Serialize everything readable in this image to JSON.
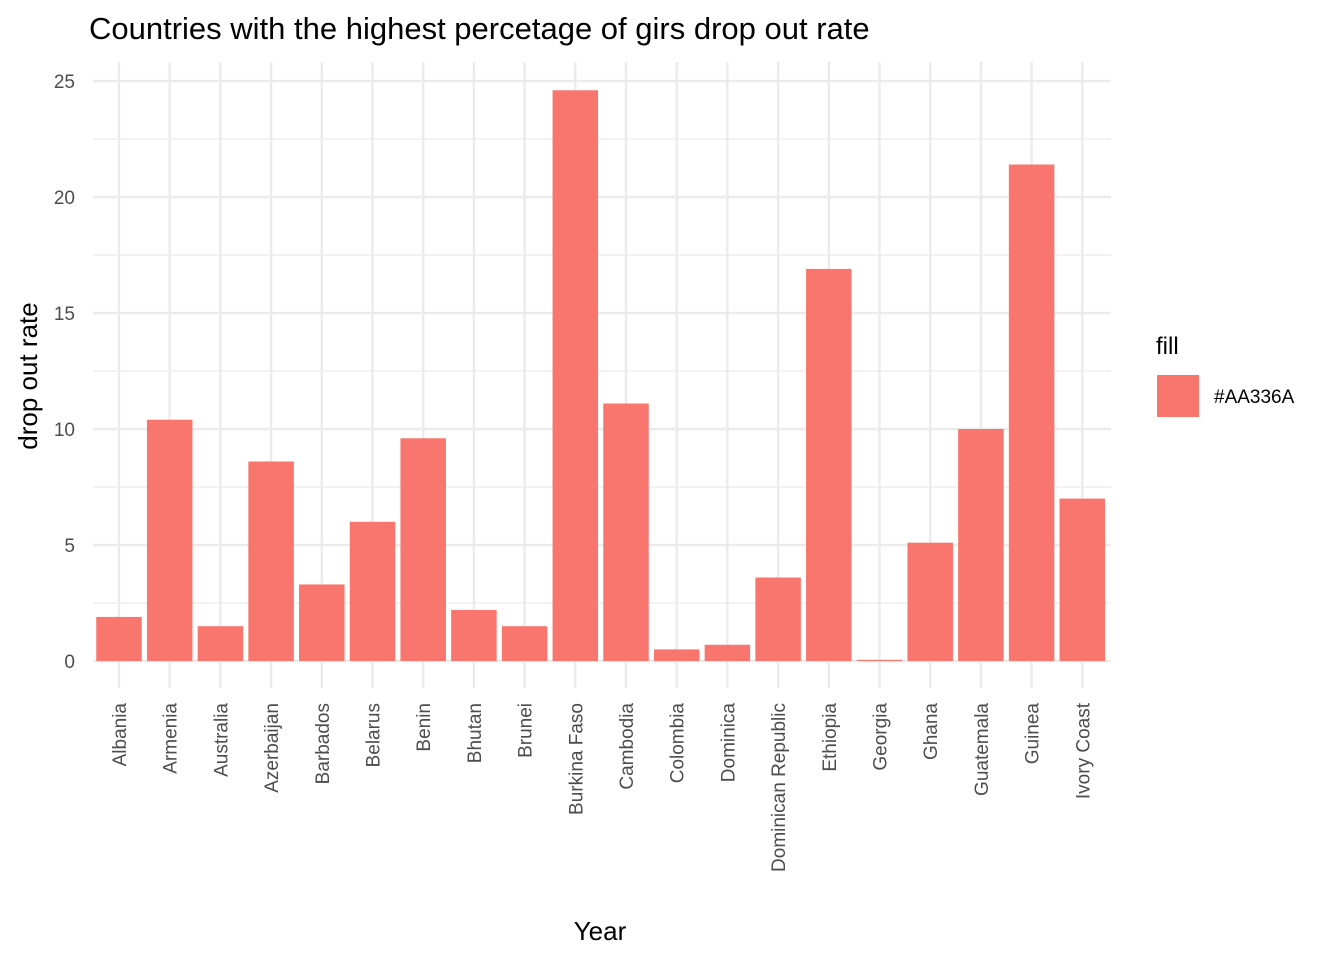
{
  "chart_data": {
    "type": "bar",
    "title": "Countries with the highest percetage of girs drop out rate",
    "xlabel": "Year",
    "ylabel": "drop out rate",
    "categories": [
      "Albania",
      "Armenia",
      "Australia",
      "Azerbaijan",
      "Barbados",
      "Belarus",
      "Benin",
      "Bhutan",
      "Brunei",
      "Burkina Faso",
      "Cambodia",
      "Colombia",
      "Dominica",
      "Dominican Republic",
      "Ethiopia",
      "Georgia",
      "Ghana",
      "Guatemala",
      "Guinea",
      "Ivory Coast"
    ],
    "values": [
      1.9,
      10.4,
      1.5,
      8.6,
      3.3,
      6.0,
      9.6,
      2.2,
      1.5,
      24.6,
      11.1,
      0.5,
      0.7,
      3.6,
      16.9,
      0.05,
      5.1,
      10.0,
      21.4,
      7.0
    ],
    "ylim": [
      0,
      25
    ],
    "yticks": [
      0,
      5,
      10,
      15,
      20,
      25
    ],
    "grid": true,
    "bar_color": "#F8766D",
    "legend": {
      "title": "fill",
      "position": "right",
      "entries": [
        {
          "label": "#AA336A",
          "color": "#F8766D"
        }
      ]
    }
  }
}
